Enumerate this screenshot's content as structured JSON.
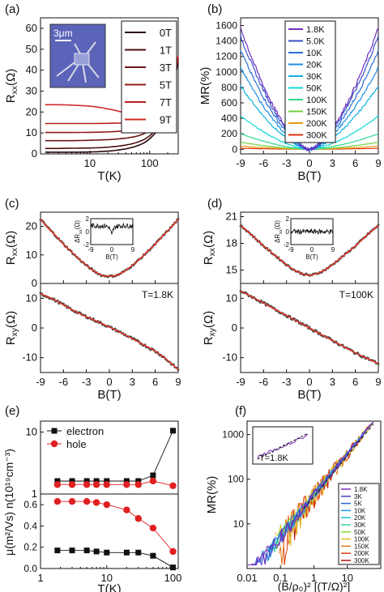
{
  "chart_data": [
    {
      "panel": "(a)",
      "type": "line",
      "xlabel": "T(K)",
      "ylabel": "R_xx(Ω)",
      "xscale": "log",
      "xlim": [
        1.5,
        300
      ],
      "ylim": [
        0,
        65
      ],
      "xticks": [
        10,
        100
      ],
      "xtick_labels": [
        "10",
        "100"
      ],
      "yticks": [
        0,
        10,
        20,
        30,
        40,
        50,
        60
      ],
      "ytick_labels": [
        "0",
        "10",
        "20",
        "30",
        "40",
        "50",
        "60"
      ],
      "legend_position": "top-right",
      "inset": {
        "label": "3μm",
        "type": "micrograph"
      },
      "series": [
        {
          "name": "0T",
          "color": "#2a0707",
          "x": [
            1.8,
            3,
            5,
            10,
            20,
            40,
            60,
            80,
            100,
            150,
            200,
            250,
            300
          ],
          "y": [
            0.8,
            0.8,
            0.8,
            0.9,
            1.3,
            2.4,
            3.7,
            5.2,
            7.2,
            13,
            21,
            32,
            45
          ]
        },
        {
          "name": "1T",
          "color": "#4d1010",
          "x": [
            1.8,
            3,
            5,
            10,
            20,
            40,
            60,
            80,
            100,
            150,
            200,
            250,
            300
          ],
          "y": [
            2.6,
            2.6,
            2.7,
            2.8,
            3.2,
            4.2,
            5.4,
            6.8,
            8.6,
            14.2,
            22,
            32.5,
            45
          ]
        },
        {
          "name": "3T",
          "color": "#701616",
          "x": [
            1.8,
            3,
            5,
            10,
            20,
            40,
            60,
            80,
            100,
            150,
            200,
            250,
            300
          ],
          "y": [
            6.3,
            6.3,
            6.3,
            6.5,
            6.8,
            7.5,
            8.4,
            9.6,
            11.1,
            16.2,
            23.5,
            33.5,
            45.5
          ]
        },
        {
          "name": "5T",
          "color": "#921b1b",
          "x": [
            1.8,
            3,
            5,
            10,
            20,
            40,
            60,
            80,
            100,
            150,
            200,
            250,
            300
          ],
          "y": [
            10.2,
            10.2,
            10.2,
            10.3,
            10.5,
            11.0,
            11.6,
            12.5,
            13.8,
            18.2,
            25,
            34.5,
            46
          ]
        },
        {
          "name": "7T",
          "color": "#b52020",
          "x": [
            1.8,
            3,
            5,
            10,
            20,
            40,
            60,
            80,
            100,
            150,
            200,
            250,
            300
          ],
          "y": [
            14.5,
            14.5,
            14.5,
            14.5,
            14.6,
            14.8,
            15.2,
            15.8,
            16.8,
            20.5,
            26.8,
            35.5,
            46.5
          ]
        },
        {
          "name": "9T",
          "color": "#d32a2a",
          "x": [
            1.8,
            3,
            5,
            10,
            20,
            40,
            60,
            80,
            100,
            150,
            200,
            250,
            300
          ],
          "y": [
            23.5,
            23.5,
            23.3,
            22.8,
            21.5,
            19.3,
            18.5,
            18.7,
            19.5,
            22.5,
            28.5,
            36.5,
            47
          ]
        }
      ]
    },
    {
      "panel": "(b)",
      "type": "line",
      "xlabel": "B(T)",
      "ylabel": "MR(%)",
      "xlim": [
        -9,
        9
      ],
      "ylim": [
        -60,
        1700
      ],
      "xticks": [
        -9,
        -6,
        -3,
        0,
        3,
        6,
        9
      ],
      "xtick_labels": [
        "-9",
        "-6",
        "-3",
        "0",
        "3",
        "6",
        "9"
      ],
      "yticks": [
        0,
        200,
        400,
        600,
        800,
        1000,
        1200,
        1400,
        1600
      ],
      "ytick_labels": [
        "0",
        "200",
        "400",
        "600",
        "800",
        "1000",
        "1200",
        "1400",
        "1600"
      ],
      "legend_position": "top-center",
      "series": [
        {
          "name": "1.8K",
          "color": "#7030c0",
          "mr9": 1570
        },
        {
          "name": "5.0K",
          "color": "#3a4fc8",
          "mr9": 1460
        },
        {
          "name": "10K",
          "color": "#2a6ed8",
          "mr9": 1280
        },
        {
          "name": "20K",
          "color": "#1e90e8",
          "mr9": 1060
        },
        {
          "name": "30K",
          "color": "#10b0e0",
          "mr9": 820
        },
        {
          "name": "50K",
          "color": "#10d8d8",
          "mr9": 430
        },
        {
          "name": "100K",
          "color": "#30d890",
          "mr9": 200
        },
        {
          "name": "150K",
          "color": "#70d040",
          "mr9": 90
        },
        {
          "name": "200K",
          "color": "#e0a010",
          "mr9": 40
        },
        {
          "name": "300K",
          "color": "#e03010",
          "mr9": 12
        }
      ]
    },
    {
      "panel": "(c)",
      "type": "scatter",
      "top": {
        "ylabel": "R_xx(Ω)",
        "xlim": [
          -9,
          9
        ],
        "ylim": [
          0,
          25
        ],
        "yticks": [
          0,
          10,
          20
        ],
        "ytick_labels": [
          "0",
          "10",
          "20"
        ],
        "data_color": "#4a4a4a",
        "fit_color": "#e03a2a",
        "x": [
          -9,
          -8,
          -7,
          -6,
          -5,
          -4,
          -3,
          -2,
          -1,
          0,
          1,
          2,
          3,
          4,
          5,
          6,
          7,
          8,
          9
        ],
        "y": [
          22.5,
          19.5,
          16.7,
          13.8,
          11.2,
          8.6,
          6.3,
          4.3,
          2.8,
          2.5,
          2.8,
          4.3,
          6.3,
          8.6,
          11.2,
          13.8,
          16.7,
          19.5,
          22.5
        ],
        "inset": {
          "xlabel": "B(T)",
          "ylabel": "ΔR_xx(Ω)",
          "xlim": [
            -9,
            9
          ],
          "ylim": [
            -2,
            2
          ],
          "xticks": [
            -9,
            0,
            9
          ],
          "xtick_labels": [
            "-9",
            "0",
            "9"
          ],
          "yticks": [
            -2,
            0,
            2
          ],
          "ytick_labels": [
            "-2",
            "0",
            "2"
          ]
        }
      },
      "bottom": {
        "ylabel": "R_xy(Ω)",
        "xlabel": "B(T)",
        "xlim": [
          -9,
          9
        ],
        "ylim": [
          -15,
          15
        ],
        "yticks": [
          -10,
          0,
          10
        ],
        "ytick_labels": [
          "-10",
          "0",
          "10"
        ],
        "xticks": [
          -9,
          -6,
          -3,
          0,
          3,
          6,
          9
        ],
        "xtick_labels": [
          "-9",
          "-6",
          "-3",
          "0",
          "3",
          "6",
          "9"
        ],
        "annotation": "T=1.8K",
        "x": [
          -9,
          -8,
          -7,
          -6,
          -5,
          -4,
          -3,
          -2,
          -1,
          0,
          1,
          2,
          3,
          4,
          5,
          6,
          7,
          8,
          9
        ],
        "y": [
          11.5,
          10.5,
          9.2,
          7.8,
          6.3,
          5.0,
          3.8,
          2.7,
          1.5,
          0.3,
          -0.9,
          -2.2,
          -3.6,
          -5.0,
          -6.4,
          -7.8,
          -9.6,
          -11.8,
          -14
        ]
      }
    },
    {
      "panel": "(d)",
      "type": "scatter",
      "top": {
        "ylabel": "R_xx(Ω)",
        "xlim": [
          -9,
          9
        ],
        "ylim": [
          13.5,
          21.5
        ],
        "yticks": [
          15,
          18,
          21
        ],
        "ytick_labels": [
          "15",
          "18",
          "21"
        ],
        "data_color": "#4a4a4a",
        "fit_color": "#e03a2a",
        "x": [
          -9,
          -8,
          -7,
          -6,
          -5,
          -4,
          -3,
          -2,
          -1,
          0,
          1,
          2,
          3,
          4,
          5,
          6,
          7,
          8,
          9
        ],
        "y": [
          20.0,
          19.3,
          18.5,
          17.7,
          17.0,
          16.3,
          15.6,
          15.0,
          14.6,
          14.4,
          14.6,
          15.0,
          15.6,
          16.3,
          17.0,
          17.7,
          18.5,
          19.3,
          20.0
        ],
        "inset": {
          "xlabel": "B(T)",
          "ylabel": "ΔR_xx(Ω)",
          "xlim": [
            -9,
            9
          ],
          "ylim": [
            -2,
            2
          ],
          "xticks": [
            -9,
            0,
            9
          ],
          "xtick_labels": [
            "-9",
            "0",
            "9"
          ],
          "yticks": [
            -2,
            0,
            2
          ],
          "ytick_labels": [
            "-2",
            "0",
            "2"
          ]
        }
      },
      "bottom": {
        "ylabel": "R_xy(Ω)",
        "xlabel": "B(T)",
        "xlim": [
          -9,
          9
        ],
        "ylim": [
          -15,
          15
        ],
        "yticks": [
          -10,
          0,
          10
        ],
        "ytick_labels": [
          "-10",
          "0",
          "10"
        ],
        "xticks": [
          -9,
          -6,
          -3,
          0,
          3,
          6,
          9
        ],
        "xtick_labels": [
          "-9",
          "-6",
          "-3",
          "0",
          "3",
          "6",
          "9"
        ],
        "annotation": "T=100K",
        "x": [
          -9,
          -6,
          -3,
          0,
          3,
          6,
          9
        ],
        "y": [
          12.5,
          8.4,
          4.2,
          0,
          -4.2,
          -8.4,
          -12
        ]
      }
    },
    {
      "panel": "(e)",
      "type": "line",
      "xlabel": "T(K)",
      "ylabel": "μ(m²/Vs) n(10¹⁹cm⁻³)",
      "xscale": "log",
      "xlim": [
        1,
        120
      ],
      "xticks": [
        1,
        10,
        100
      ],
      "xtick_labels": [
        "1",
        "10",
        "100"
      ],
      "top": {
        "yscale": "log",
        "ylim": [
          1,
          15
        ],
        "yticks": [
          1,
          10
        ],
        "ytick_labels": [
          "1",
          "10"
        ],
        "series": [
          {
            "name": "electron",
            "marker": "square",
            "color": "#111111",
            "x": [
              1.8,
              3,
              5,
              7,
              10,
              20,
              30,
              50,
              100
            ],
            "y": [
              1.62,
              1.62,
              1.62,
              1.62,
              1.62,
              1.62,
              1.62,
              2.0,
              10.5
            ]
          },
          {
            "name": "hole",
            "marker": "circle",
            "color": "#e02020",
            "x": [
              1.8,
              3,
              5,
              7,
              10,
              20,
              30,
              50,
              100
            ],
            "y": [
              1.42,
              1.42,
              1.42,
              1.42,
              1.42,
              1.42,
              1.42,
              1.62,
              1.36
            ]
          }
        ],
        "legend_position": "top-left"
      },
      "bottom": {
        "ylim": [
          0,
          0.7
        ],
        "yticks": [
          0.0,
          0.2,
          0.4,
          0.6
        ],
        "ytick_labels": [
          "0.0",
          "0.2",
          "0.4",
          "0.6"
        ],
        "series": [
          {
            "name": "electron",
            "marker": "square",
            "color": "#111111",
            "x": [
              1.8,
              3,
              5,
              7,
              10,
              20,
              30,
              50,
              100
            ],
            "y": [
              0.17,
              0.17,
              0.17,
              0.16,
              0.15,
              0.15,
              0.15,
              0.12,
              0.01
            ]
          },
          {
            "name": "hole",
            "marker": "circle",
            "color": "#e02020",
            "x": [
              1.8,
              3,
              5,
              7,
              10,
              20,
              30,
              50,
              100
            ],
            "y": [
              0.63,
              0.63,
              0.63,
              0.62,
              0.6,
              0.55,
              0.47,
              0.38,
              0.16
            ]
          }
        ]
      }
    },
    {
      "panel": "(f)",
      "type": "line",
      "xlabel": "(B/ρ₀)² [(T/Ω)²]",
      "ylabel": "MR(%)",
      "xscale": "log",
      "yscale": "log",
      "xlim": [
        0.01,
        100
      ],
      "ylim": [
        1,
        2000
      ],
      "xticks": [
        0.01,
        0.1,
        1,
        10
      ],
      "xtick_labels": [
        "0.01",
        "0.1",
        "1",
        "10"
      ],
      "yticks": [
        10,
        100,
        1000
      ],
      "ytick_labels": [
        "10",
        "100",
        "1000"
      ],
      "legend_position": "bottom-right",
      "inset": {
        "annotation": "T=1.8K"
      },
      "series": [
        {
          "name": "1.8K",
          "color": "#7a2ab8"
        },
        {
          "name": "3K",
          "color": "#4b3bc4"
        },
        {
          "name": "5K",
          "color": "#2c63d8"
        },
        {
          "name": "10K",
          "color": "#2a96e6"
        },
        {
          "name": "20K",
          "color": "#19c0d8"
        },
        {
          "name": "30K",
          "color": "#3ad4a0"
        },
        {
          "name": "50K",
          "color": "#8ad63a"
        },
        {
          "name": "100K",
          "color": "#e0c020"
        },
        {
          "name": "150K",
          "color": "#e07a18"
        },
        {
          "name": "200K",
          "color": "#e03a10"
        },
        {
          "name": "300K",
          "color": "#c01010"
        }
      ]
    }
  ]
}
